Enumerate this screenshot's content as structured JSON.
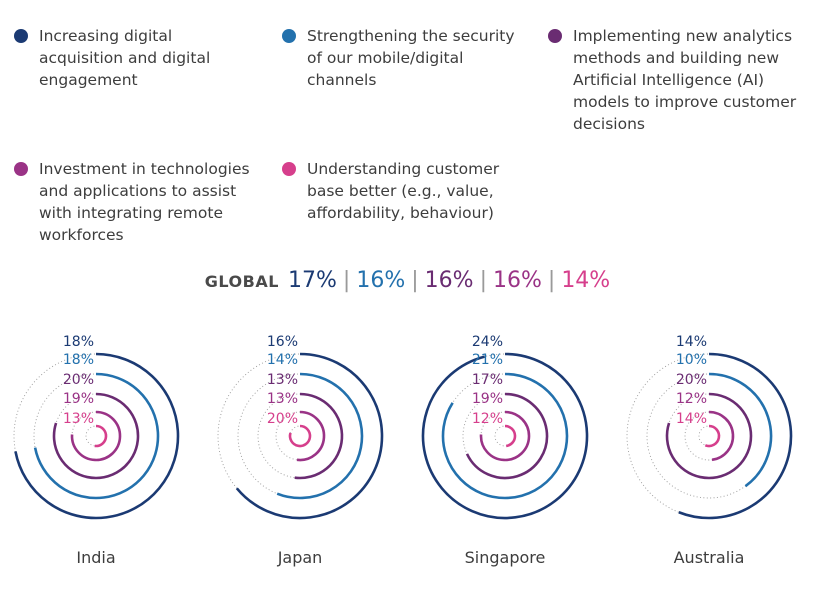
{
  "legend": [
    {
      "label": "Increasing digital acquisition and digital engagement",
      "color": "#1b3a73"
    },
    {
      "label": "Strengthening the security of our mobile/digital channels",
      "color": "#2371ad"
    },
    {
      "label": "Implementing new analytics methods and building new Artificial Intelligence (AI) models to improve customer decisions",
      "color": "#6a2c72"
    },
    {
      "label": "Investment in technologies and applications to assist with integrating remote workforces",
      "color": "#9a3386"
    },
    {
      "label": "Understanding customer base better (e.g., value, affordability, behaviour)",
      "color": "#d63f8c"
    }
  ],
  "global": {
    "label": "GLOBAL",
    "values": [
      "17%",
      "16%",
      "16%",
      "16%",
      "14%"
    ],
    "separator": "|"
  },
  "chart_data": {
    "type": "radial-bar",
    "unit": "%",
    "max": 25,
    "series": [
      {
        "name": "Increasing digital acquisition and digital engagement",
        "color": "#1b3a73"
      },
      {
        "name": "Strengthening the security of our mobile/digital channels",
        "color": "#2371ad"
      },
      {
        "name": "Implementing new analytics methods and building new Artificial Intelligence (AI) models to improve customer decisions",
        "color": "#6a2c72"
      },
      {
        "name": "Investment in technologies and applications to assist with integrating remote workforces",
        "color": "#9a3386"
      },
      {
        "name": "Understanding customer base better (e.g., value, affordability, behaviour)",
        "color": "#d63f8c"
      }
    ],
    "categories": [
      "India",
      "Japan",
      "Singapore",
      "Australia"
    ],
    "values": [
      [
        18,
        18,
        20,
        19,
        13
      ],
      [
        16,
        14,
        13,
        13,
        20
      ],
      [
        24,
        21,
        17,
        19,
        12
      ],
      [
        14,
        10,
        20,
        12,
        14
      ]
    ],
    "labels": [
      [
        "18%",
        "18%",
        "20%",
        "19%",
        "13%"
      ],
      [
        "16%",
        "14%",
        "13%",
        "13%",
        "20%"
      ],
      [
        "24%",
        "21%",
        "17%",
        "19%",
        "12%"
      ],
      [
        "14%",
        "10%",
        "20%",
        "12%",
        "14%"
      ]
    ]
  }
}
